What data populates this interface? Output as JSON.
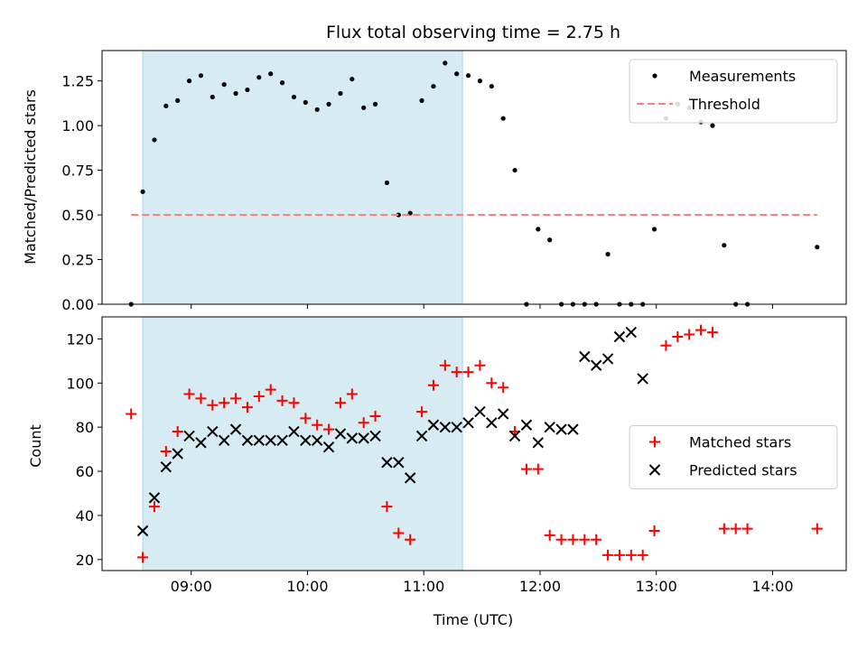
{
  "chart_data": [
    {
      "type": "scatter",
      "title": "Flux total observing time = 2.75 h",
      "xlabel": "",
      "ylabel": "Matched/Predicted stars",
      "xlim": [
        "08:14",
        "14:38"
      ],
      "ylim": [
        0,
        1.42
      ],
      "yticks": [
        0.0,
        0.25,
        0.5,
        0.75,
        1.0,
        1.25
      ],
      "ytick_labels": [
        "0.00",
        "0.25",
        "0.50",
        "0.75",
        "1.00",
        "1.25"
      ],
      "xticks": [
        "09:00",
        "10:00",
        "11:00",
        "12:00",
        "13:00",
        "14:00"
      ],
      "xtick_labels_shown": false,
      "shaded_span": {
        "x": [
          "08:35",
          "11:20"
        ],
        "color": "#add8e6"
      },
      "legend": {
        "location": "upper right"
      },
      "series": [
        {
          "name": "Measurements",
          "marker": "dot",
          "color": "#000000",
          "x": [
            "08:29",
            "08:35",
            "08:41",
            "08:47",
            "08:53",
            "08:59",
            "09:05",
            "09:11",
            "09:17",
            "09:23",
            "09:29",
            "09:35",
            "09:41",
            "09:47",
            "09:53",
            "09:59",
            "10:05",
            "10:11",
            "10:17",
            "10:23",
            "10:29",
            "10:35",
            "10:41",
            "10:47",
            "10:53",
            "10:59",
            "11:05",
            "11:11",
            "11:17",
            "11:23",
            "11:29",
            "11:35",
            "11:41",
            "11:47",
            "11:53",
            "11:59",
            "12:05",
            "12:11",
            "12:17",
            "12:23",
            "12:29",
            "12:35",
            "12:41",
            "12:47",
            "12:53",
            "12:59",
            "13:05",
            "13:11",
            "13:17",
            "13:23",
            "13:29",
            "13:35",
            "13:41",
            "13:47",
            "14:23"
          ],
          "y": [
            0.0,
            0.63,
            0.92,
            1.11,
            1.14,
            1.25,
            1.28,
            1.16,
            1.23,
            1.18,
            1.2,
            1.27,
            1.29,
            1.24,
            1.16,
            1.13,
            1.09,
            1.12,
            1.18,
            1.26,
            1.1,
            1.12,
            0.68,
            0.5,
            0.51,
            1.14,
            1.22,
            1.35,
            1.29,
            1.28,
            1.25,
            1.22,
            1.04,
            0.75,
            0.0,
            0.42,
            0.36,
            0.0,
            0.0,
            0.0,
            0.0,
            0.28,
            0.0,
            0.0,
            0.0,
            0.42,
            1.04,
            1.12,
            1.1,
            1.02,
            1.0,
            0.33,
            0.0,
            0.0,
            0.32
          ]
        },
        {
          "name": "Threshold",
          "marker": "dashed-line",
          "color": "#ff7f7f",
          "x": [
            "08:29",
            "14:23"
          ],
          "y": [
            0.5,
            0.5
          ]
        }
      ]
    },
    {
      "type": "scatter",
      "title": "",
      "xlabel": "Time (UTC)",
      "ylabel": "Count",
      "xlim": [
        "08:14",
        "14:38"
      ],
      "ylim": [
        15,
        130
      ],
      "yticks": [
        20,
        40,
        60,
        80,
        100,
        120
      ],
      "xticks": [
        "09:00",
        "10:00",
        "11:00",
        "12:00",
        "13:00",
        "14:00"
      ],
      "xtick_labels_shown": true,
      "shaded_span": {
        "x": [
          "08:35",
          "11:20"
        ],
        "color": "#add8e6"
      },
      "legend": {
        "location": "center right"
      },
      "series": [
        {
          "name": "Matched stars",
          "marker": "plus",
          "color": "#ff0000",
          "x": [
            "08:29",
            "08:35",
            "08:41",
            "08:47",
            "08:53",
            "08:59",
            "09:05",
            "09:11",
            "09:17",
            "09:23",
            "09:29",
            "09:35",
            "09:41",
            "09:47",
            "09:53",
            "09:59",
            "10:05",
            "10:11",
            "10:17",
            "10:23",
            "10:29",
            "10:35",
            "10:41",
            "10:47",
            "10:53",
            "10:59",
            "11:05",
            "11:11",
            "11:17",
            "11:23",
            "11:29",
            "11:35",
            "11:41",
            "11:47",
            "11:53",
            "11:59",
            "12:05",
            "12:11",
            "12:17",
            "12:23",
            "12:29",
            "12:35",
            "12:41",
            "12:47",
            "12:53",
            "12:59",
            "13:05",
            "13:11",
            "13:17",
            "13:23",
            "13:29",
            "13:35",
            "13:41",
            "13:47",
            "14:23"
          ],
          "y": [
            86,
            21,
            44,
            69,
            78,
            95,
            93,
            90,
            91,
            93,
            89,
            94,
            97,
            92,
            91,
            84,
            81,
            79,
            91,
            95,
            82,
            85,
            44,
            32,
            29,
            87,
            99,
            108,
            105,
            105,
            108,
            100,
            98,
            78,
            61,
            61,
            31,
            29,
            29,
            29,
            29,
            22,
            22,
            22,
            22,
            33,
            117,
            121,
            122,
            124,
            123,
            34,
            34,
            34,
            34
          ]
        },
        {
          "name": "Predicted stars",
          "marker": "x",
          "color": "#000000",
          "x": [
            "08:35",
            "08:41",
            "08:47",
            "08:53",
            "08:59",
            "09:05",
            "09:11",
            "09:17",
            "09:23",
            "09:29",
            "09:35",
            "09:41",
            "09:47",
            "09:53",
            "09:59",
            "10:05",
            "10:11",
            "10:17",
            "10:23",
            "10:29",
            "10:35",
            "10:41",
            "10:47",
            "10:53",
            "10:59",
            "11:05",
            "11:11",
            "11:17",
            "11:23",
            "11:29",
            "11:35",
            "11:41",
            "11:47",
            "11:53",
            "11:59",
            "12:05",
            "12:11",
            "12:17",
            "12:23",
            "12:29",
            "12:35",
            "12:41",
            "12:47",
            "12:53"
          ],
          "y": [
            33,
            48,
            62,
            68,
            76,
            73,
            78,
            74,
            79,
            74,
            74,
            74,
            74,
            78,
            74,
            74,
            71,
            77,
            75,
            75,
            76,
            64,
            64,
            57,
            76,
            81,
            80,
            80,
            82,
            87,
            82,
            86,
            76,
            81,
            73,
            80,
            79,
            79,
            112,
            108,
            111,
            121,
            123,
            102
          ]
        }
      ]
    }
  ]
}
